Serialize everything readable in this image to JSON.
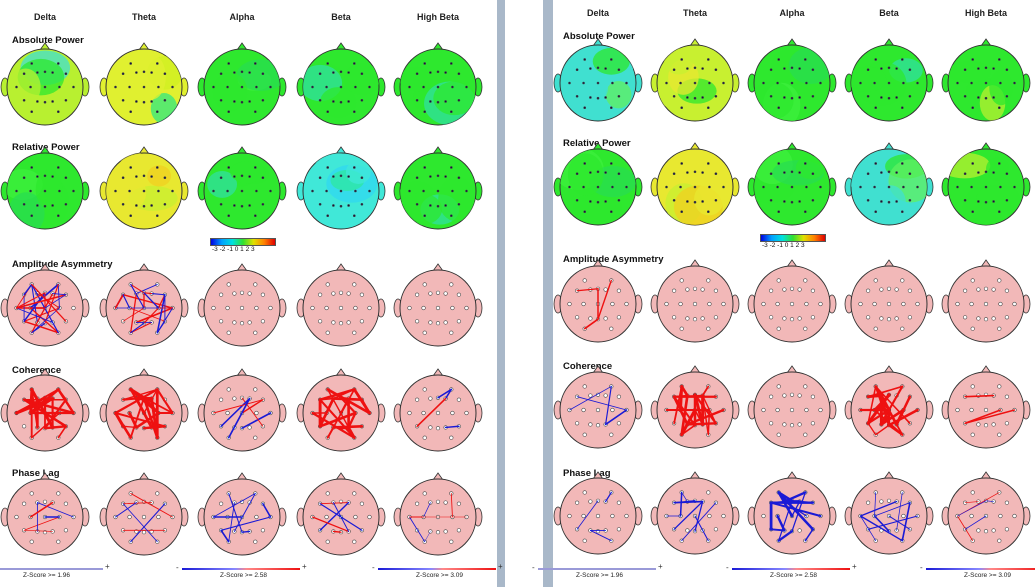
{
  "bands": [
    "Delta",
    "Theta",
    "Alpha",
    "Beta",
    "High Beta"
  ],
  "rows": [
    "Absolute Power",
    "Relative Power",
    "Amplitude Asymmetry",
    "Coherence",
    "Phase Lag"
  ],
  "color_scale": {
    "ticks": "-3 -2 -1 0 1 2 3"
  },
  "zscore": [
    "Z-Score >= 1.96",
    "Z-Score >= 2.58",
    "Z-Score >= 3.09"
  ],
  "sign": {
    "minus": "-",
    "plus": "+"
  },
  "colors": {
    "scalp_green": "#2ee82e",
    "asym_bg": "#f2b8b8",
    "pos_line": "#ee1111",
    "neg_line": "#1a1ad6"
  },
  "panels": [
    {
      "power_maps": [
        [
          "mixed-yellow-cyan",
          "mixed-yellow",
          "green",
          "green-cyan",
          "green-cyan"
        ],
        [
          "green",
          "yellow",
          "green-cyan",
          "cyan",
          "green-cyan"
        ]
      ],
      "connectivity_density": {
        "asymmetry": [
          "dense-mixed",
          "dense-mixed",
          "none",
          "none",
          "none"
        ],
        "coherence": [
          "dense-red",
          "dense-red",
          "blue-red",
          "dense-red",
          "red-blue"
        ],
        "phase_lag": [
          "blue-red",
          "blue-red",
          "blue",
          "blue-red",
          "blue-red-thin"
        ]
      }
    },
    {
      "power_maps": [
        [
          "cyan-green",
          "yellow-green",
          "green",
          "green-cyan",
          "green-yellow"
        ],
        [
          "green",
          "yellow",
          "green",
          "cyan-green",
          "green-yellow"
        ]
      ],
      "connectivity_density": {
        "asymmetry": [
          "sparse-red",
          "none",
          "none",
          "none",
          "none"
        ],
        "coherence": [
          "sparse-blue",
          "dense-red",
          "none",
          "dense-red",
          "sparse-red"
        ],
        "phase_lag": [
          "sparse-blue",
          "blue",
          "dense-blue",
          "blue",
          "blue-red-thin"
        ]
      }
    }
  ]
}
